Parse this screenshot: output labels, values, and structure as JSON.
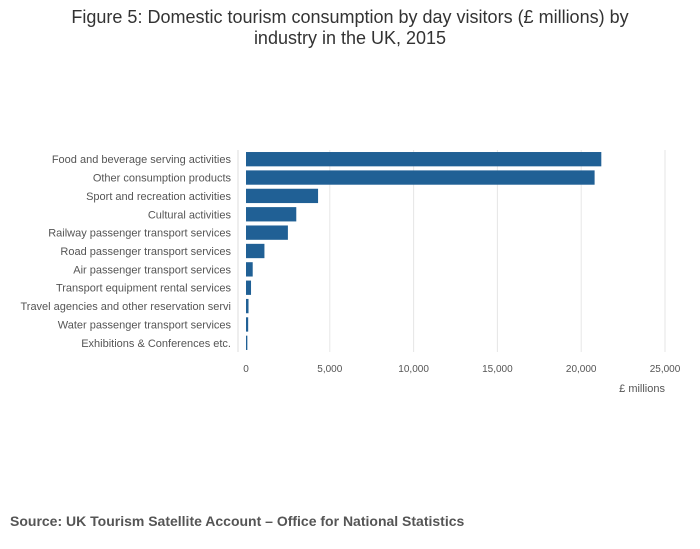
{
  "chart_data": {
    "type": "bar",
    "orientation": "horizontal",
    "title_lines": [
      "Figure 5: Domestic tourism consumption by day visitors (£ millions) by",
      "industry in the UK, 2015"
    ],
    "categories": [
      "Food and beverage serving activities",
      "Other consumption products",
      "Sport and recreation activities",
      "Cultural activities",
      "Railway passenger transport services",
      "Road passenger transport services",
      "Air passenger transport services",
      "Transport equipment rental services",
      "Travel agencies and other reservation servi",
      "Water passenger transport services",
      "Exhibitions & Conferences etc."
    ],
    "values": [
      21200,
      20800,
      4300,
      3000,
      2500,
      1100,
      400,
      300,
      150,
      130,
      80
    ],
    "xlabel": "£ millions",
    "xlim": [
      0,
      25000
    ],
    "xticks": [
      0,
      5000,
      10000,
      15000,
      20000,
      25000
    ],
    "xtick_labels": [
      "0",
      "5,000",
      "10,000",
      "15,000",
      "20,000",
      "25,000"
    ],
    "grid": "vertical",
    "bar_color": "#206095",
    "legend": "none",
    "source": "Source: UK Tourism Satellite Account – Office for National Statistics"
  }
}
